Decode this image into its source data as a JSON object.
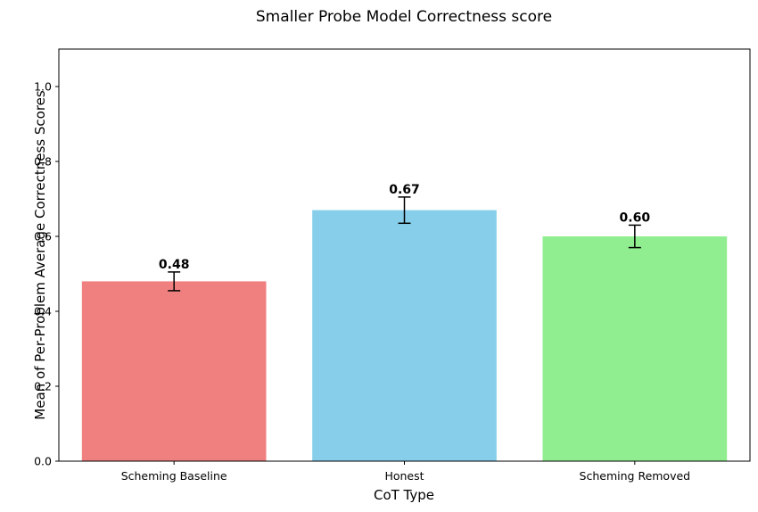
{
  "chart_data": {
    "type": "bar",
    "title": "Smaller Probe Model Correctness score",
    "xlabel": "CoT Type",
    "ylabel": "Mean of Per-Problem Average Correctness Scores",
    "categories": [
      "Scheming Baseline",
      "Honest",
      "Scheming Removed"
    ],
    "values": [
      0.48,
      0.67,
      0.6
    ],
    "value_labels": [
      "0.48",
      "0.67",
      "0.60"
    ],
    "error_bars": [
      0.025,
      0.035,
      0.03
    ],
    "colors": [
      "#f08080",
      "#87ceeb",
      "#90ee90"
    ],
    "ylim": [
      0,
      1.1
    ],
    "yticks": [
      0.0,
      0.2,
      0.4,
      0.6,
      0.8,
      1.0
    ],
    "ytick_labels": [
      "0.0",
      "0.2",
      "0.4",
      "0.6",
      "0.8",
      "1.0"
    ],
    "grid": false,
    "legend": "none"
  }
}
